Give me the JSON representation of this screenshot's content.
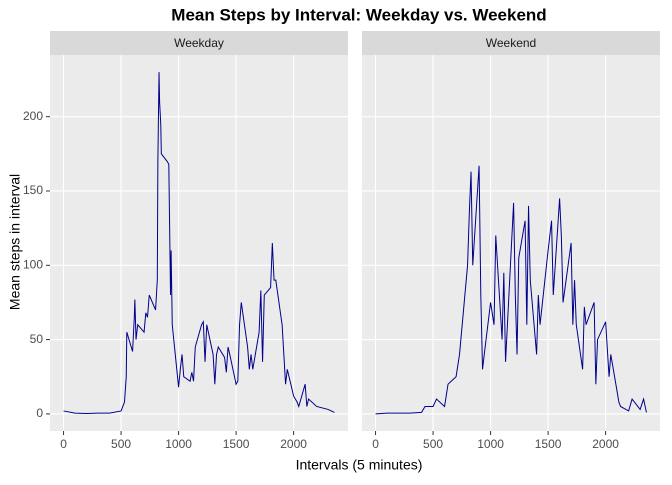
{
  "chart_data": {
    "type": "line",
    "title": "Mean Steps by Interval: Weekday vs. Weekend",
    "xlabel": "Intervals (5 minutes)",
    "ylabel": "Mean steps in interval",
    "xlim": [
      -117.75,
      2472.75
    ],
    "ylim": [
      -11.5,
      241.5
    ],
    "xticks": [
      0,
      500,
      1000,
      1500,
      2000
    ],
    "yticks": [
      0,
      50,
      100,
      150,
      200
    ],
    "grid": true,
    "color": "#00008b",
    "facets": [
      {
        "name": "Weekday",
        "x": [
          0,
          100,
          200,
          300,
          400,
          500,
          530,
          545,
          550,
          600,
          615,
          620,
          630,
          645,
          700,
          715,
          730,
          745,
          800,
          815,
          820,
          830,
          835,
          845,
          850,
          900,
          915,
          930,
          935,
          945,
          1000,
          1015,
          1030,
          1045,
          1100,
          1115,
          1130,
          1145,
          1200,
          1215,
          1230,
          1245,
          1300,
          1315,
          1330,
          1345,
          1400,
          1415,
          1430,
          1445,
          1500,
          1515,
          1530,
          1545,
          1600,
          1615,
          1630,
          1645,
          1700,
          1715,
          1730,
          1745,
          1800,
          1815,
          1830,
          1845,
          1900,
          1915,
          1930,
          1945,
          2000,
          2030,
          2045,
          2100,
          2115,
          2130,
          2200,
          2300,
          2355
        ],
        "values": [
          2,
          0.5,
          0.3,
          0.5,
          0.5,
          2,
          8,
          25,
          55,
          42,
          65,
          77,
          50,
          60,
          55,
          68,
          65,
          80,
          70,
          90,
          170,
          230,
          210,
          195,
          175,
          170,
          168,
          80,
          110,
          60,
          18,
          30,
          40,
          25,
          22,
          28,
          22,
          45,
          60,
          62,
          35,
          60,
          40,
          20,
          40,
          45,
          38,
          28,
          45,
          40,
          20,
          22,
          60,
          75,
          45,
          30,
          40,
          30,
          55,
          83,
          35,
          80,
          85,
          115,
          90,
          90,
          60,
          40,
          20,
          30,
          12,
          8,
          5,
          20,
          5,
          10,
          5,
          3,
          1
        ]
      },
      {
        "name": "Weekend",
        "x": [
          0,
          100,
          200,
          300,
          400,
          430,
          500,
          530,
          600,
          630,
          700,
          730,
          800,
          815,
          830,
          845,
          900,
          915,
          930,
          945,
          1000,
          1030,
          1045,
          1100,
          1115,
          1130,
          1200,
          1215,
          1230,
          1245,
          1300,
          1315,
          1330,
          1345,
          1400,
          1415,
          1430,
          1500,
          1530,
          1545,
          1600,
          1615,
          1630,
          1700,
          1715,
          1730,
          1745,
          1800,
          1815,
          1830,
          1900,
          1915,
          1930,
          2000,
          2030,
          2045,
          2100,
          2115,
          2130,
          2200,
          2230,
          2300,
          2330,
          2355
        ],
        "values": [
          0,
          0.5,
          0.5,
          0.5,
          1,
          5,
          5,
          10,
          5,
          20,
          25,
          40,
          100,
          135,
          163,
          100,
          167,
          80,
          30,
          40,
          75,
          60,
          120,
          50,
          95,
          35,
          142,
          80,
          40,
          105,
          130,
          60,
          140,
          90,
          40,
          80,
          60,
          110,
          130,
          80,
          145,
          120,
          75,
          115,
          60,
          90,
          60,
          30,
          72,
          60,
          75,
          20,
          50,
          62,
          25,
          40,
          15,
          8,
          5,
          2,
          10,
          3,
          10,
          1
        ]
      }
    ]
  }
}
